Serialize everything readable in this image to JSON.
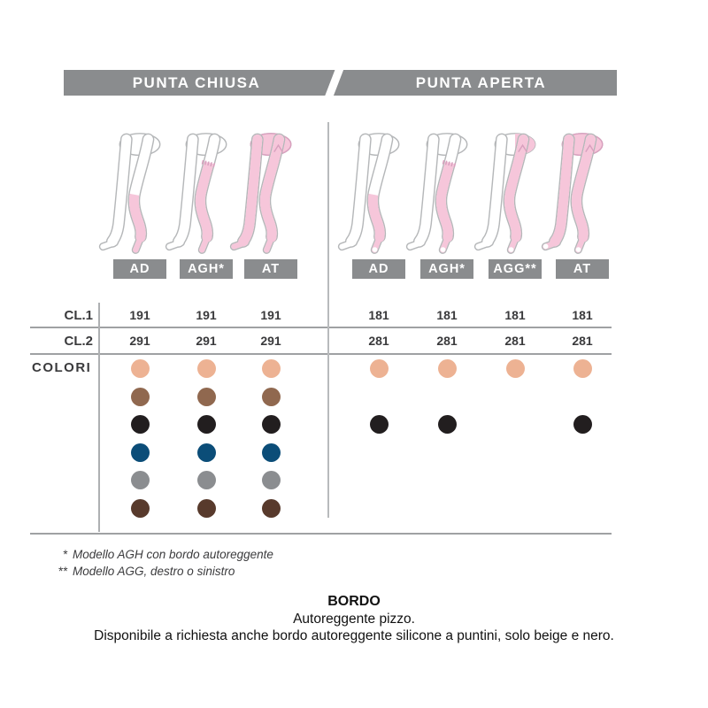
{
  "header": {
    "left_tab": "PUNTA CHIUSA",
    "right_tab": "PUNTA APERTA"
  },
  "rows": {
    "cl1_label": "CL.1",
    "cl2_label": "CL.2",
    "colori_label": "COLORI"
  },
  "sections": [
    {
      "name": "punta-chiusa",
      "toe": "chiusa",
      "columns": [
        {
          "label": "AD",
          "model": "AD",
          "cl1": "191",
          "cl2": "291",
          "colors_available": [
            "beige",
            "marrone",
            "nero",
            "blu",
            "grigio",
            "moro"
          ]
        },
        {
          "label": "AGH*",
          "model": "AGH",
          "cl1": "191",
          "cl2": "291",
          "colors_available": [
            "beige",
            "marrone",
            "nero",
            "blu",
            "grigio",
            "moro"
          ]
        },
        {
          "label": "AT",
          "model": "AT",
          "cl1": "191",
          "cl2": "291",
          "colors_available": [
            "beige",
            "marrone",
            "nero",
            "blu",
            "grigio",
            "moro"
          ]
        }
      ]
    },
    {
      "name": "punta-aperta",
      "toe": "aperta",
      "columns": [
        {
          "label": "AD",
          "model": "AD",
          "cl1": "181",
          "cl2": "281",
          "colors_available": [
            "beige",
            "nero"
          ]
        },
        {
          "label": "AGH*",
          "model": "AGH",
          "cl1": "181",
          "cl2": "281",
          "colors_available": [
            "beige",
            "nero"
          ]
        },
        {
          "label": "AGG**",
          "model": "AGG",
          "cl1": "181",
          "cl2": "281",
          "colors_available": [
            "beige"
          ]
        },
        {
          "label": "AT",
          "model": "AT",
          "cl1": "181",
          "cl2": "281",
          "colors_available": [
            "beige",
            "nero"
          ]
        }
      ]
    }
  ],
  "palette": [
    {
      "name": "beige",
      "hex": "#edb293"
    },
    {
      "name": "marrone",
      "hex": "#90684f"
    },
    {
      "name": "nero",
      "hex": "#221e1f"
    },
    {
      "name": "blu",
      "hex": "#0b4d78"
    },
    {
      "name": "grigio",
      "hex": "#8b8d90"
    },
    {
      "name": "moro",
      "hex": "#583a2c"
    }
  ],
  "footnotes": [
    {
      "marker": "*",
      "text": "Modello AGH con bordo autoreggente"
    },
    {
      "marker": "**",
      "text": "Modello AGG, destro o sinistro"
    }
  ],
  "bordo": {
    "title": "BORDO",
    "line1": "Autoreggente pizzo.",
    "line2": "Disponibile a richiesta anche bordo autoreggente silicone a puntini, solo beige e nero."
  },
  "colors": {
    "bar_gray": "#8a8c8e",
    "text_dark": "#3a3a3c",
    "line_gray": "#9fa1a3",
    "outline_gray": "#b5b7b9",
    "pink_fill": "#f6c6da",
    "pink_stroke": "#d8a0be"
  }
}
